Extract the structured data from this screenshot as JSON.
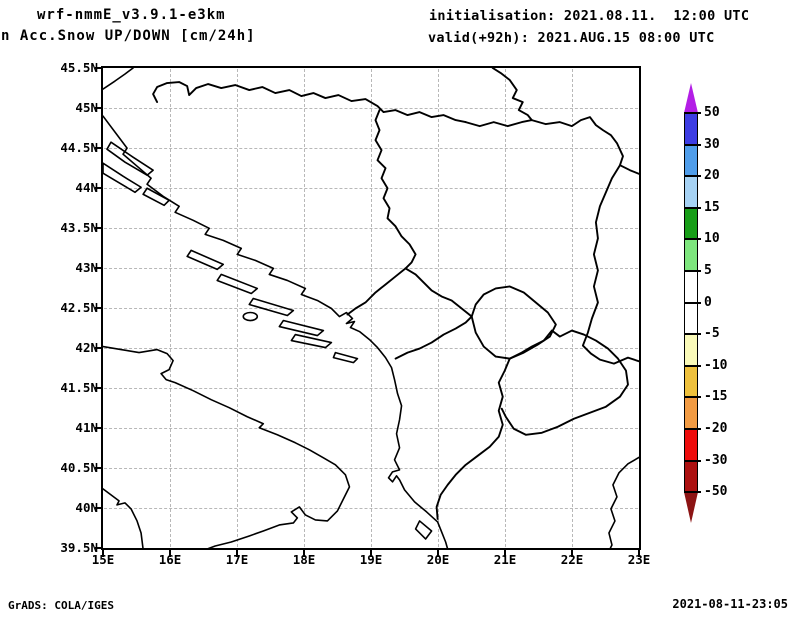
{
  "header": {
    "model": "wrf-nmmE_v3.9.1-e3km",
    "product": "n Acc.Snow UP/DOWN [cm/24h]",
    "initialisation": "initialisation: 2021.08.11.  12:00 UTC",
    "valid": "valid(+92h): 2021.AUG.15 08:00 UTC"
  },
  "footer": {
    "credit": "GrADS: COLA/IGES",
    "timestamp": "2021-08-11-23:05"
  },
  "chart_data": {
    "type": "map",
    "title": "n Acc.Snow UP/DOWN [cm/24h]",
    "model": "wrf-nmmE_v3.9.1-e3km",
    "init_time": "2021.08.11. 12:00 UTC",
    "valid_time": "2021.AUG.15 08:00 UTC (+92h)",
    "region": "Adriatic / Balkans",
    "lon_range": [
      15,
      23
    ],
    "lat_range": [
      39.5,
      45.5
    ],
    "grid": true,
    "lon_ticks": [
      "15E",
      "16E",
      "17E",
      "18E",
      "19E",
      "20E",
      "21E",
      "22E",
      "23E"
    ],
    "lat_ticks": [
      "45.5N",
      "45N",
      "44.5N",
      "44N",
      "43.5N",
      "43N",
      "42.5N",
      "42N",
      "41.5N",
      "41N",
      "40.5N",
      "40N",
      "39.5N"
    ],
    "field": "24h accumulated snow up/down [cm/24h]",
    "field_note": "no shaded snow values inside domain (all within white 0 band)",
    "colorbar": {
      "labels": [
        "50",
        "30",
        "20",
        "15",
        "10",
        "5",
        "0",
        "-5",
        "-10",
        "-15",
        "-20",
        "-30",
        "-50"
      ],
      "values": [
        50,
        30,
        20,
        15,
        10,
        5,
        0,
        -5,
        -10,
        -15,
        -20,
        -30,
        -50
      ],
      "colors": [
        "#B31EE6",
        "#3D3DE3",
        "#4F9DEA",
        "#A6D2F4",
        "#179E17",
        "#7EE67E",
        "#FFFFFF",
        "#FFFFFF",
        "#FAFAB9",
        "#EFC13D",
        "#F29B43",
        "#EE0C0C",
        "#AC1111",
        "#8C1414"
      ]
    }
  }
}
